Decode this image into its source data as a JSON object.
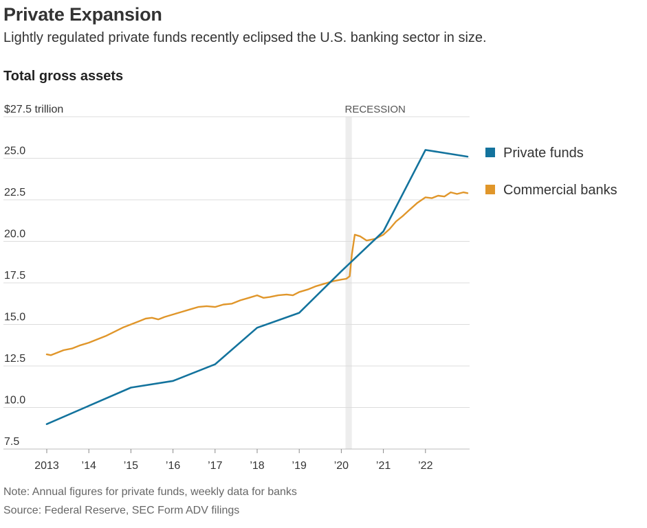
{
  "header": {
    "title": "Private Expansion",
    "subtitle": "Lightly regulated private funds recently eclipsed the U.S. banking sector in size.",
    "chart_heading": "Total gross assets"
  },
  "footer": {
    "note": "Note: Annual figures for private funds, weekly data for banks",
    "source": "Source: Federal Reserve, SEC Form ADV filings"
  },
  "chart_data": {
    "type": "line",
    "title": "Total gross assets",
    "ylabel": "",
    "xlabel": "",
    "ylim": [
      7.5,
      27.5
    ],
    "xlim": [
      2013,
      2023
    ],
    "y_ticks": [
      {
        "value": 7.5,
        "label": "7.5"
      },
      {
        "value": 10,
        "label": "10.0"
      },
      {
        "value": 12.5,
        "label": "12.5"
      },
      {
        "value": 15,
        "label": "15.0"
      },
      {
        "value": 17.5,
        "label": "17.5"
      },
      {
        "value": 20,
        "label": "20.0"
      },
      {
        "value": 22.5,
        "label": "22.5"
      },
      {
        "value": 25,
        "label": "25.0"
      },
      {
        "value": 27.5,
        "label": "$27.5 trillion"
      }
    ],
    "x_ticks": [
      {
        "value": 2013,
        "label": "2013"
      },
      {
        "value": 2014,
        "label": "’14"
      },
      {
        "value": 2015,
        "label": "’15"
      },
      {
        "value": 2016,
        "label": "’16"
      },
      {
        "value": 2017,
        "label": "’17"
      },
      {
        "value": 2018,
        "label": "’18"
      },
      {
        "value": 2019,
        "label": "’19"
      },
      {
        "value": 2020,
        "label": "’20"
      },
      {
        "value": 2021,
        "label": "’21"
      },
      {
        "value": 2022,
        "label": "’22"
      }
    ],
    "recession": {
      "label": "RECESSION",
      "start": 2020.1,
      "end": 2020.25,
      "color": "#ededed"
    },
    "grid": true,
    "legend_position": "right",
    "series": [
      {
        "name": "Private funds",
        "color": "#13739d",
        "points": [
          [
            2013,
            9.0
          ],
          [
            2014,
            10.1
          ],
          [
            2015,
            11.2
          ],
          [
            2016,
            11.6
          ],
          [
            2017,
            12.6
          ],
          [
            2018,
            14.8
          ],
          [
            2019,
            15.7
          ],
          [
            2020,
            18.2
          ],
          [
            2021,
            20.6
          ],
          [
            2022,
            25.5
          ],
          [
            2023,
            25.1
          ]
        ]
      },
      {
        "name": "Commercial banks",
        "color": "#e0962a",
        "points": [
          [
            2013.0,
            13.2
          ],
          [
            2013.1,
            13.15
          ],
          [
            2013.25,
            13.3
          ],
          [
            2013.4,
            13.45
          ],
          [
            2013.6,
            13.55
          ],
          [
            2013.8,
            13.75
          ],
          [
            2014.0,
            13.9
          ],
          [
            2014.2,
            14.1
          ],
          [
            2014.4,
            14.3
          ],
          [
            2014.6,
            14.55
          ],
          [
            2014.8,
            14.8
          ],
          [
            2015.0,
            15.0
          ],
          [
            2015.2,
            15.2
          ],
          [
            2015.35,
            15.35
          ],
          [
            2015.5,
            15.4
          ],
          [
            2015.65,
            15.3
          ],
          [
            2015.8,
            15.45
          ],
          [
            2016.0,
            15.6
          ],
          [
            2016.2,
            15.75
          ],
          [
            2016.4,
            15.9
          ],
          [
            2016.6,
            16.05
          ],
          [
            2016.8,
            16.1
          ],
          [
            2017.0,
            16.05
          ],
          [
            2017.2,
            16.2
          ],
          [
            2017.4,
            16.25
          ],
          [
            2017.6,
            16.45
          ],
          [
            2017.8,
            16.6
          ],
          [
            2018.0,
            16.75
          ],
          [
            2018.15,
            16.6
          ],
          [
            2018.3,
            16.65
          ],
          [
            2018.5,
            16.75
          ],
          [
            2018.7,
            16.8
          ],
          [
            2018.85,
            16.75
          ],
          [
            2019.0,
            16.95
          ],
          [
            2019.2,
            17.1
          ],
          [
            2019.4,
            17.3
          ],
          [
            2019.6,
            17.45
          ],
          [
            2019.8,
            17.6
          ],
          [
            2020.0,
            17.7
          ],
          [
            2020.12,
            17.75
          ],
          [
            2020.2,
            17.9
          ],
          [
            2020.25,
            19.2
          ],
          [
            2020.32,
            20.4
          ],
          [
            2020.45,
            20.3
          ],
          [
            2020.6,
            20.05
          ],
          [
            2020.8,
            20.15
          ],
          [
            2021.0,
            20.4
          ],
          [
            2021.15,
            20.75
          ],
          [
            2021.3,
            21.2
          ],
          [
            2021.45,
            21.5
          ],
          [
            2021.6,
            21.85
          ],
          [
            2021.8,
            22.3
          ],
          [
            2022.0,
            22.65
          ],
          [
            2022.15,
            22.6
          ],
          [
            2022.3,
            22.75
          ],
          [
            2022.45,
            22.7
          ],
          [
            2022.6,
            22.95
          ],
          [
            2022.75,
            22.85
          ],
          [
            2022.9,
            22.95
          ],
          [
            2023.0,
            22.9
          ]
        ]
      }
    ]
  }
}
